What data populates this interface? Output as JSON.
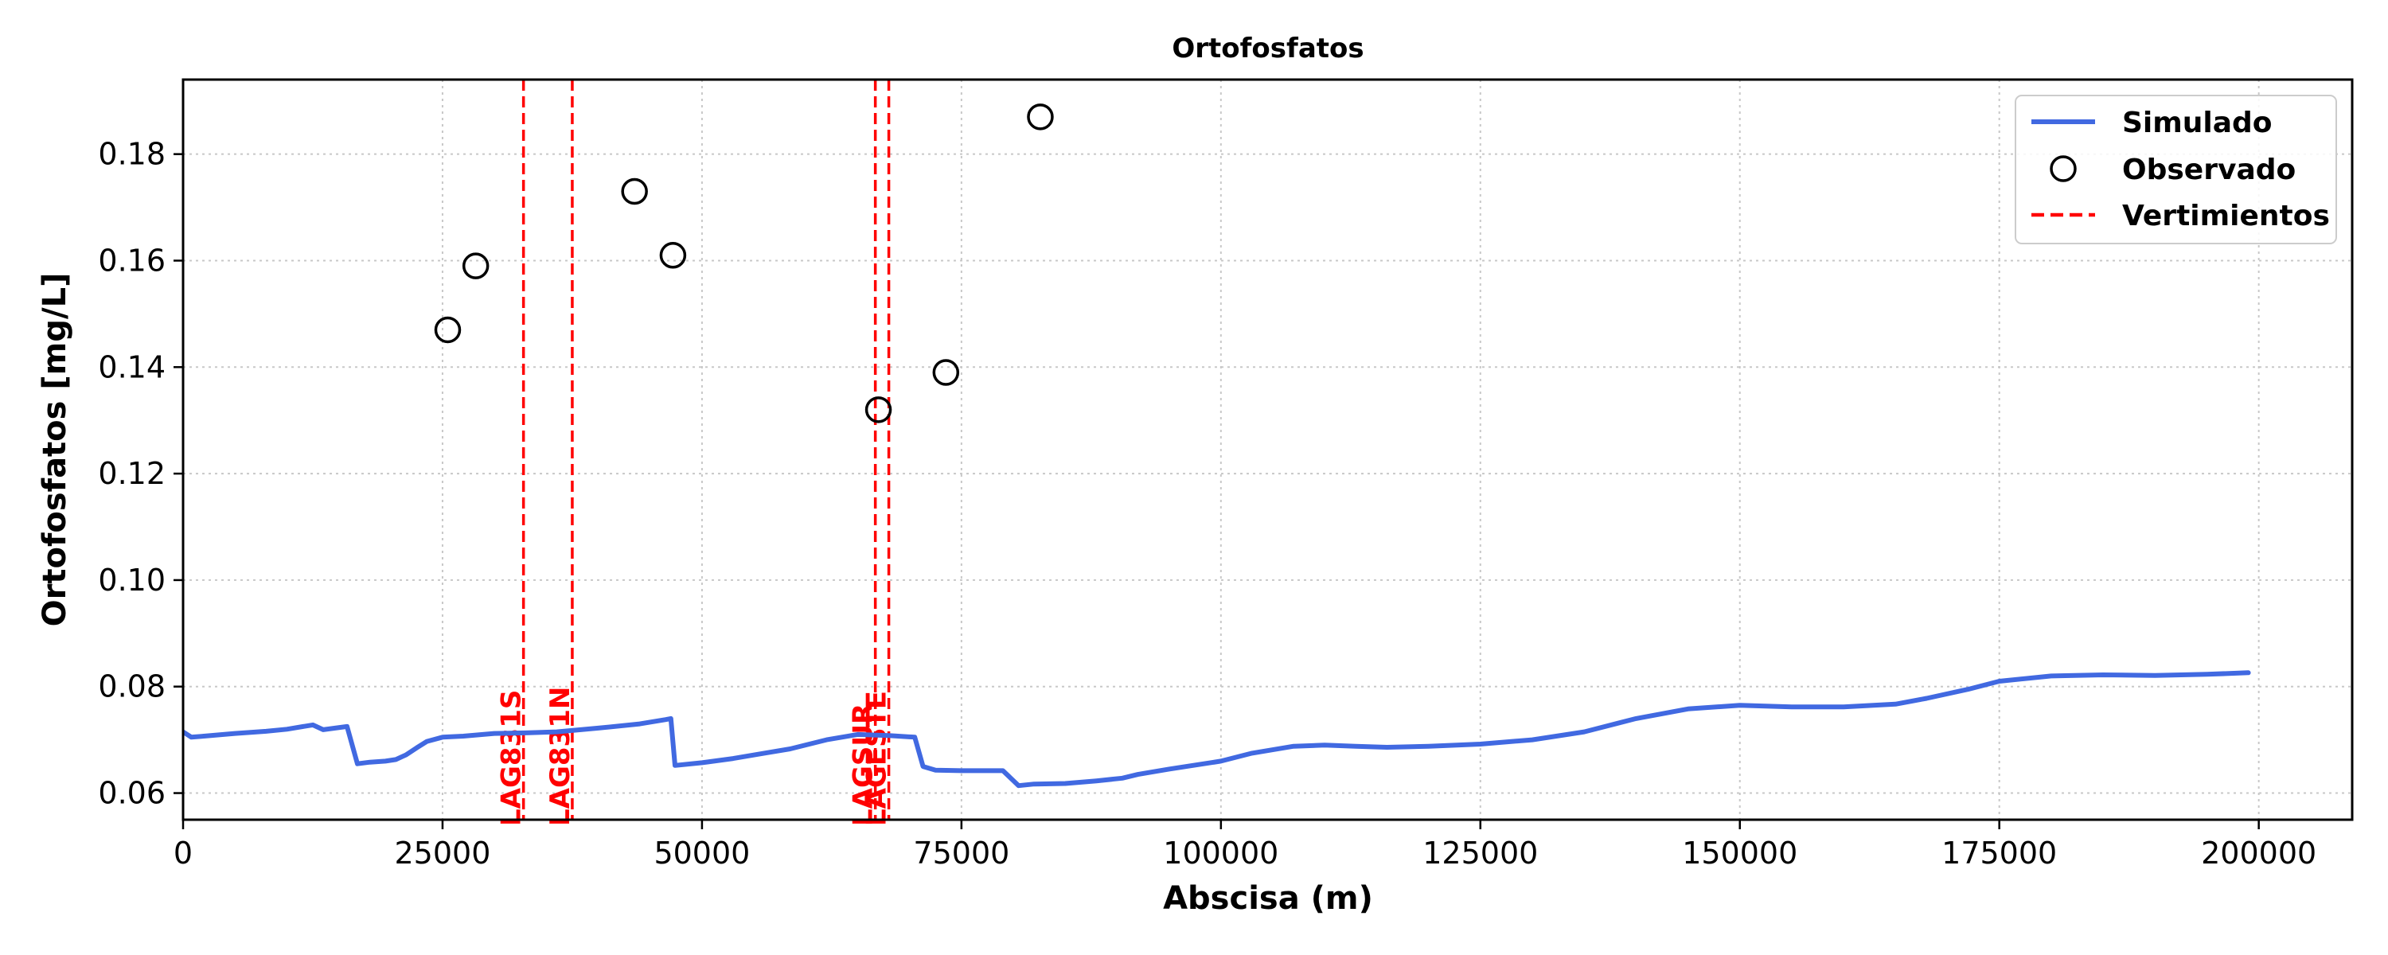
{
  "chart_data": {
    "type": "line",
    "title": "Ortofosfatos",
    "xlabel": "Abscisa (m)",
    "ylabel": "Ortofosfatos [mg/L]",
    "xlim": [
      0,
      209000
    ],
    "ylim": [
      0.055,
      0.194
    ],
    "x_ticks": [
      0,
      25000,
      50000,
      75000,
      100000,
      125000,
      150000,
      175000,
      200000
    ],
    "y_ticks": [
      0.06,
      0.08,
      0.1,
      0.12,
      0.14,
      0.16,
      0.18
    ],
    "x_tick_labels": [
      "0",
      "25000",
      "50000",
      "75000",
      "100000",
      "125000",
      "150000",
      "175000",
      "200000"
    ],
    "y_tick_labels": [
      "0.06",
      "0.08",
      "0.10",
      "0.12",
      "0.14",
      "0.16",
      "0.18"
    ],
    "grid": true,
    "legend_position": "top-right",
    "series": [
      {
        "name": "Simulado",
        "kind": "line",
        "color": "#4169E1",
        "x": [
          0,
          800,
          2000,
          5000,
          8000,
          10000,
          12500,
          13500,
          15800,
          16800,
          18000,
          19500,
          20500,
          21500,
          22500,
          23500,
          25000,
          27000,
          30000,
          33000,
          36000,
          40000,
          44000,
          46500,
          47000,
          47400,
          50000,
          53000,
          56000,
          58500,
          62000,
          65000,
          68000,
          70500,
          71300,
          72500,
          75000,
          79000,
          80500,
          82000,
          85000,
          88000,
          90500,
          92000,
          95000,
          100000,
          103000,
          107000,
          110000,
          113000,
          116000,
          120000,
          125000,
          130000,
          135000,
          140000,
          145000,
          150000,
          155000,
          160000,
          165000,
          168000,
          172000,
          175000,
          180000,
          185000,
          190000,
          195000,
          199000
        ],
        "y": [
          0.0715,
          0.0705,
          0.0707,
          0.0712,
          0.0716,
          0.072,
          0.0728,
          0.0719,
          0.0725,
          0.0655,
          0.0658,
          0.066,
          0.0663,
          0.0672,
          0.0685,
          0.0697,
          0.0705,
          0.0707,
          0.0712,
          0.0713,
          0.0715,
          0.0722,
          0.073,
          0.0738,
          0.074,
          0.0652,
          0.0657,
          0.0665,
          0.0675,
          0.0683,
          0.07,
          0.071,
          0.0708,
          0.0705,
          0.065,
          0.0643,
          0.0642,
          0.0642,
          0.0614,
          0.0617,
          0.0618,
          0.0623,
          0.0628,
          0.0635,
          0.0645,
          0.066,
          0.0675,
          0.0688,
          0.069,
          0.0688,
          0.0686,
          0.0688,
          0.0692,
          0.07,
          0.0715,
          0.074,
          0.0758,
          0.0765,
          0.0762,
          0.0762,
          0.0767,
          0.0778,
          0.0795,
          0.081,
          0.082,
          0.0822,
          0.0821,
          0.0823,
          0.0826
        ]
      },
      {
        "name": "Observado",
        "kind": "scatter",
        "color": "#000000",
        "x": [
          25500,
          28200,
          43500,
          47200,
          67000,
          73500,
          82600
        ],
        "y": [
          0.147,
          0.159,
          0.173,
          0.161,
          0.132,
          0.139,
          0.187
        ]
      }
    ],
    "vlines": {
      "name": "Vertimientos",
      "color": "#FF0000",
      "items": [
        {
          "x": 32800,
          "label": "LAG831S"
        },
        {
          "x": 37500,
          "label": "LAG831N"
        },
        {
          "x": 66700,
          "label": "LAGSUR"
        },
        {
          "x": 68000,
          "label": "LAGESTE"
        }
      ]
    }
  }
}
